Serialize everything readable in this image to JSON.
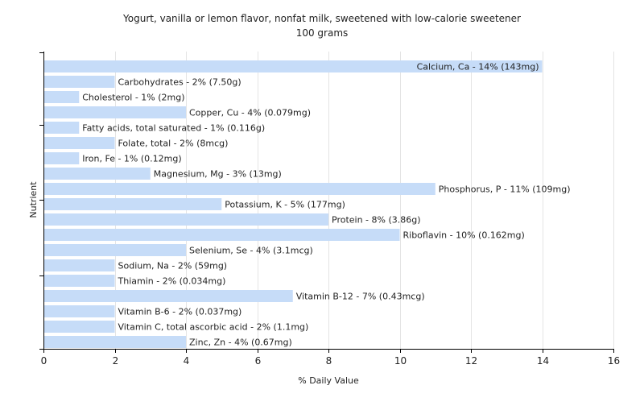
{
  "chart_data": {
    "type": "bar",
    "orientation": "horizontal",
    "title": "Yogurt, vanilla or lemon flavor, nonfat milk, sweetened with low-calorie sweetener",
    "subtitle": "100 grams",
    "xlabel": "% Daily Value",
    "ylabel": "Nutrient",
    "xlim": [
      0,
      16
    ],
    "xticks": [
      "0",
      "2",
      "4",
      "6",
      "8",
      "10",
      "12",
      "14",
      "16"
    ],
    "grid": true,
    "bar_color": "#c6dcf8",
    "categories": [
      "Calcium, Ca",
      "Carbohydrates",
      "Cholesterol",
      "Copper, Cu",
      "Fatty acids, total saturated",
      "Folate, total",
      "Iron, Fe",
      "Magnesium, Mg",
      "Phosphorus, P",
      "Potassium, K",
      "Protein",
      "Riboflavin",
      "Selenium, Se",
      "Sodium, Na",
      "Thiamin",
      "Vitamin B-12",
      "Vitamin B-6",
      "Vitamin C, total ascorbic acid",
      "Zinc, Zn"
    ],
    "values": [
      14,
      2,
      1,
      4,
      1,
      2,
      1,
      3,
      11,
      5,
      8,
      10,
      4,
      2,
      2,
      7,
      2,
      2,
      4
    ],
    "labels": [
      "Calcium, Ca - 14% (143mg)",
      "Carbohydrates - 2% (7.50g)",
      "Cholesterol - 1% (2mg)",
      "Copper, Cu - 4% (0.079mg)",
      "Fatty acids, total saturated - 1% (0.116g)",
      "Folate, total - 2% (8mcg)",
      "Iron, Fe - 1% (0.12mg)",
      "Magnesium, Mg - 3% (13mg)",
      "Phosphorus, P - 11% (109mg)",
      "Potassium, K - 5% (177mg)",
      "Protein - 8% (3.86g)",
      "Riboflavin - 10% (0.162mg)",
      "Selenium, Se - 4% (3.1mcg)",
      "Sodium, Na - 2% (59mg)",
      "Thiamin - 2% (0.034mg)",
      "Vitamin B-12 - 7% (0.43mcg)",
      "Vitamin B-6 - 2% (0.037mg)",
      "Vitamin C, total ascorbic acid - 2% (1.1mg)",
      "Zinc, Zn - 4% (0.67mg)"
    ]
  }
}
